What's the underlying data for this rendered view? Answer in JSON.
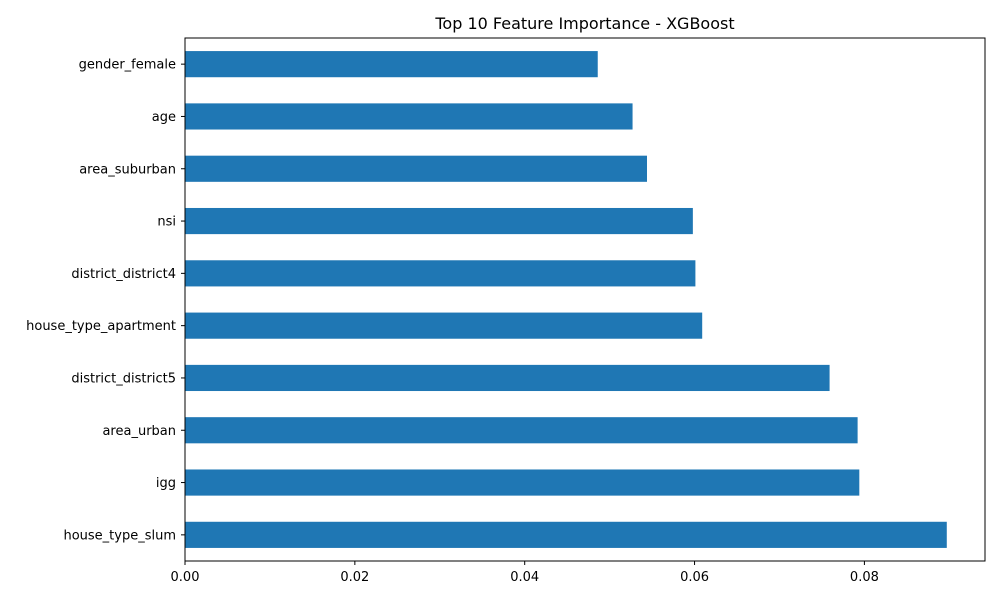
{
  "chart_data": {
    "type": "bar",
    "orientation": "horizontal",
    "title": "Top 10 Feature Importance - XGBoost",
    "xlabel": "",
    "ylabel": "",
    "categories": [
      "gender_female",
      "age",
      "area_suburban",
      "nsi",
      "district_district4",
      "house_type_apartment",
      "district_district5",
      "area_urban",
      "igg",
      "house_type_slum"
    ],
    "values": [
      0.0486,
      0.0527,
      0.0544,
      0.0598,
      0.0601,
      0.0609,
      0.0759,
      0.0792,
      0.0794,
      0.0897
    ],
    "xlim": [
      0,
      0.0942
    ],
    "xticks": [
      0.0,
      0.02,
      0.04,
      0.06,
      0.08
    ],
    "xtick_labels": [
      "0.00",
      "0.02",
      "0.04",
      "0.06",
      "0.08"
    ],
    "bar_color": "#1f77b4",
    "grid": false,
    "legend": "none"
  }
}
